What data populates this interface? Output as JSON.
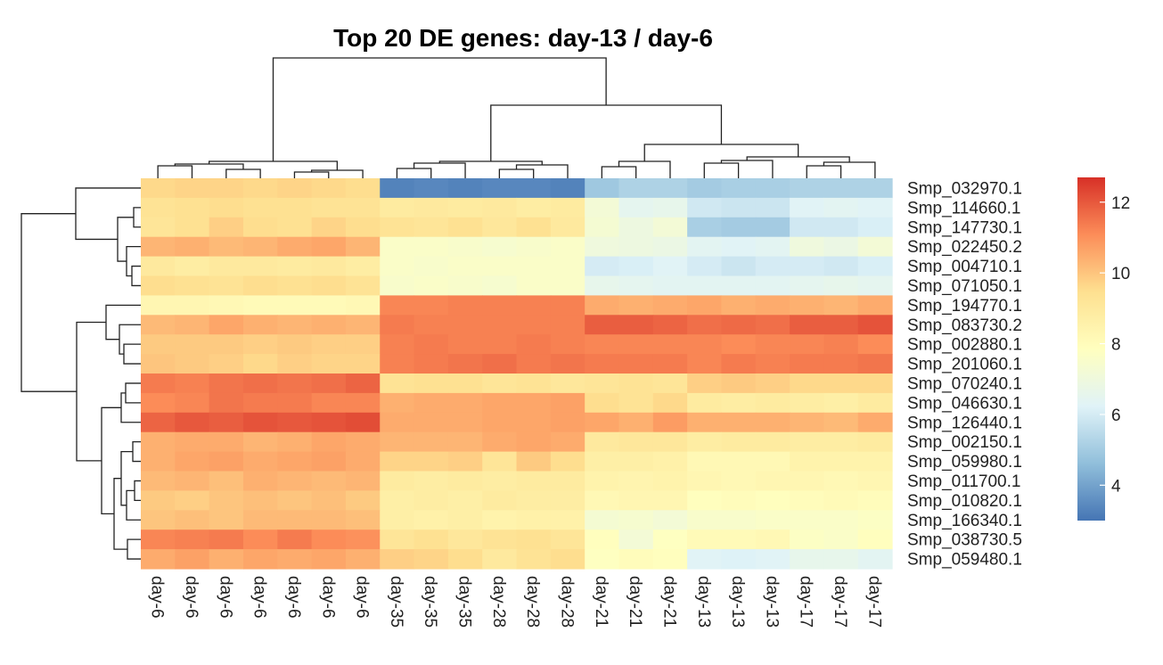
{
  "chart_data": {
    "type": "heatmap",
    "title": "Top 20 DE genes: day-13 / day-6",
    "columns": [
      "day-6",
      "day-6",
      "day-6",
      "day-6",
      "day-6",
      "day-6",
      "day-6",
      "day-35",
      "day-35",
      "day-35",
      "day-28",
      "day-28",
      "day-28",
      "day-21",
      "day-21",
      "day-21",
      "day-13",
      "day-13",
      "day-13",
      "day-17",
      "day-17",
      "day-17"
    ],
    "rows": [
      "Smp_032970.1",
      "Smp_114660.1",
      "Smp_147730.1",
      "Smp_022450.2",
      "Smp_004710.1",
      "Smp_071050.1",
      "Smp_194770.1",
      "Smp_083730.2",
      "Smp_002880.1",
      "Smp_201060.1",
      "Smp_070240.1",
      "Smp_046630.1",
      "Smp_126440.1",
      "Smp_002150.1",
      "Smp_059980.1",
      "Smp_011700.1",
      "Smp_010820.1",
      "Smp_166340.1",
      "Smp_038730.5",
      "Smp_059480.1"
    ],
    "values": [
      [
        9.6,
        9.7,
        9.7,
        9.6,
        9.7,
        9.6,
        9.5,
        3.3,
        3.4,
        3.3,
        3.4,
        3.4,
        3.3,
        4.9,
        5.2,
        5.2,
        5.0,
        5.1,
        5.1,
        5.2,
        5.2,
        5.2
      ],
      [
        9.3,
        9.4,
        9.5,
        9.4,
        9.4,
        9.3,
        9.3,
        8.9,
        9.0,
        8.9,
        9.0,
        8.8,
        8.9,
        7.2,
        6.5,
        6.6,
        5.9,
        5.8,
        5.8,
        6.3,
        6.4,
        6.3
      ],
      [
        9.2,
        9.4,
        9.8,
        9.5,
        9.4,
        9.7,
        9.5,
        9.3,
        9.2,
        9.4,
        9.1,
        9.4,
        9.0,
        7.3,
        6.9,
        7.2,
        5.1,
        5.0,
        5.0,
        5.9,
        5.9,
        6.1
      ],
      [
        10.3,
        10.4,
        10.2,
        10.3,
        10.5,
        10.6,
        10.3,
        7.6,
        7.6,
        7.5,
        7.4,
        7.5,
        7.6,
        7.0,
        6.9,
        6.8,
        6.4,
        6.3,
        6.4,
        7.0,
        6.8,
        7.2
      ],
      [
        9.0,
        8.8,
        9.0,
        9.0,
        8.9,
        9.0,
        8.8,
        7.6,
        7.5,
        7.6,
        7.6,
        7.6,
        7.6,
        6.0,
        6.1,
        6.3,
        6.0,
        5.8,
        6.0,
        6.0,
        5.9,
        6.1
      ],
      [
        9.5,
        9.4,
        9.3,
        9.5,
        9.4,
        9.5,
        9.3,
        7.5,
        7.6,
        7.5,
        7.4,
        7.6,
        7.6,
        6.6,
        6.5,
        6.4,
        6.4,
        6.4,
        6.4,
        6.5,
        6.6,
        6.5
      ],
      [
        8.3,
        8.3,
        8.2,
        8.1,
        8.1,
        8.1,
        8.2,
        11.2,
        11.2,
        11.3,
        11.3,
        11.3,
        11.3,
        10.5,
        10.4,
        10.5,
        10.6,
        10.4,
        10.5,
        10.4,
        10.3,
        10.5
      ],
      [
        10.2,
        10.3,
        10.6,
        10.4,
        10.3,
        10.4,
        10.3,
        11.4,
        11.3,
        11.3,
        11.3,
        11.3,
        11.3,
        11.9,
        11.9,
        11.8,
        11.6,
        11.7,
        11.6,
        11.9,
        11.9,
        12.1
      ],
      [
        9.9,
        9.9,
        9.9,
        9.8,
        9.9,
        9.8,
        9.8,
        11.3,
        11.4,
        11.3,
        11.3,
        11.4,
        11.3,
        11.2,
        11.2,
        11.2,
        11.2,
        11.1,
        11.2,
        11.2,
        11.3,
        11.1
      ],
      [
        10.0,
        9.9,
        9.8,
        9.6,
        9.8,
        9.7,
        9.7,
        11.3,
        11.4,
        11.5,
        11.6,
        11.4,
        11.5,
        11.4,
        11.4,
        11.4,
        11.2,
        11.4,
        11.3,
        11.4,
        11.4,
        11.5
      ],
      [
        11.4,
        11.3,
        11.5,
        11.6,
        11.5,
        11.6,
        11.8,
        9.3,
        9.4,
        9.4,
        9.2,
        9.3,
        9.1,
        9.2,
        9.3,
        9.2,
        9.8,
        9.9,
        9.8,
        9.6,
        9.6,
        9.6
      ],
      [
        11.1,
        11.2,
        11.5,
        11.4,
        11.4,
        11.2,
        11.2,
        10.4,
        10.5,
        10.5,
        10.6,
        10.6,
        10.7,
        9.5,
        9.3,
        9.6,
        8.9,
        8.8,
        8.9,
        8.8,
        8.7,
        8.9
      ],
      [
        11.8,
        12.0,
        11.9,
        12.1,
        12.0,
        12.1,
        12.2,
        10.5,
        10.5,
        10.5,
        10.6,
        10.6,
        10.7,
        10.6,
        10.4,
        10.8,
        10.4,
        10.4,
        10.4,
        10.3,
        10.2,
        10.5
      ],
      [
        10.4,
        10.5,
        10.5,
        10.3,
        10.4,
        10.6,
        10.5,
        10.3,
        10.3,
        10.3,
        10.5,
        10.6,
        10.5,
        9.0,
        9.1,
        9.1,
        8.8,
        8.9,
        8.9,
        8.8,
        8.8,
        8.9
      ],
      [
        10.4,
        10.6,
        10.7,
        10.5,
        10.6,
        10.7,
        10.5,
        9.7,
        9.7,
        9.8,
        9.2,
        9.9,
        9.5,
        8.7,
        8.7,
        8.6,
        8.2,
        8.2,
        8.2,
        8.5,
        8.5,
        8.5
      ],
      [
        10.2,
        10.3,
        10.1,
        10.4,
        10.3,
        10.2,
        10.3,
        8.9,
        8.8,
        8.9,
        8.8,
        8.9,
        8.9,
        8.5,
        8.4,
        8.5,
        8.3,
        8.2,
        8.3,
        8.3,
        8.2,
        8.3
      ],
      [
        9.9,
        9.8,
        10.0,
        10.1,
        10.0,
        10.1,
        9.9,
        8.7,
        8.8,
        8.7,
        8.9,
        8.8,
        8.8,
        8.2,
        8.3,
        8.3,
        7.9,
        8.0,
        7.9,
        8.0,
        8.1,
        8.0
      ],
      [
        10.0,
        10.1,
        10.0,
        10.2,
        10.2,
        10.2,
        10.1,
        8.7,
        8.6,
        8.7,
        8.5,
        8.6,
        8.6,
        7.3,
        7.4,
        7.2,
        7.5,
        7.5,
        7.6,
        7.6,
        7.6,
        7.7
      ],
      [
        11.2,
        11.3,
        11.4,
        11.1,
        11.4,
        11.1,
        11.0,
        9.2,
        9.4,
        9.1,
        9.3,
        9.4,
        9.2,
        7.9,
        7.2,
        7.8,
        8.1,
        8.1,
        8.2,
        7.7,
        7.6,
        7.9
      ],
      [
        10.5,
        10.7,
        10.4,
        10.6,
        10.5,
        10.6,
        10.4,
        9.8,
        9.7,
        9.5,
        9.0,
        9.3,
        9.5,
        7.8,
        8.0,
        7.9,
        6.3,
        6.2,
        6.3,
        6.6,
        6.6,
        6.4
      ]
    ],
    "color_scale": {
      "min": 3.0,
      "max": 12.7,
      "ticks": [
        4,
        6,
        8,
        10,
        12
      ],
      "colors": [
        "#4575B4",
        "#91BFDB",
        "#E0F3F8",
        "#FFFFBF",
        "#FEE090",
        "#FC8D59",
        "#D73027"
      ]
    },
    "legend": "right",
    "grid": false
  }
}
